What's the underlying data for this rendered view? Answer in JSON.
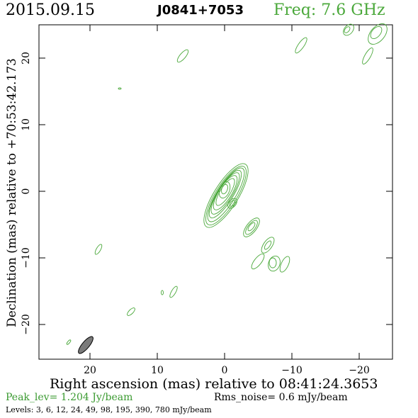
{
  "header": {
    "date": "2015.09.15",
    "source": "J0841+7053",
    "frequency": "Freq: 7.6 GHz"
  },
  "axes": {
    "x_label": "Right ascension (mas) relative to 08:41:24.3653",
    "y_label": "Declination (mas) relative to +70:53:42.173",
    "x_ticks": [
      "20",
      "10",
      "0",
      "−10",
      "−20"
    ],
    "y_ticks": [
      "20",
      "10",
      "0",
      "−10",
      "−20"
    ]
  },
  "footer": {
    "peak": "Peak_lev=  1.204 Jy/beam",
    "rms": "Rms_noise=  0.6 mJy/beam",
    "levels": "Levels:   3,   6,  12,  24,  49,  98, 195, 390, 780 mJy/beam"
  },
  "colors": {
    "contour": "#4aa83a",
    "beam": "#7a7a7a",
    "frame": "#000000"
  }
}
